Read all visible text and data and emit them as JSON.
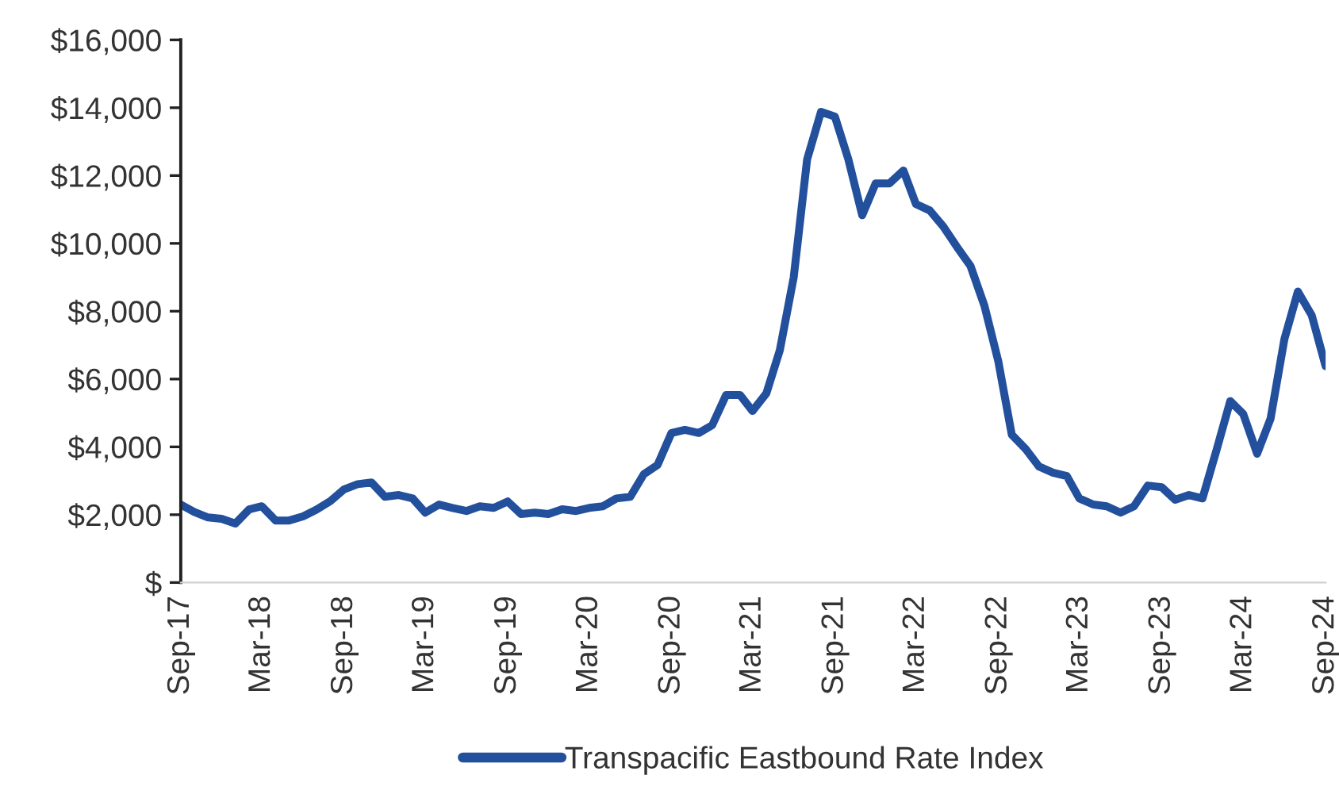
{
  "chart_data": {
    "type": "line",
    "series": [
      {
        "name": "Transpacific Eastbound Rate Index",
        "color": "#23509c",
        "x": [
          "2017-09",
          "2017-10",
          "2017-11",
          "2017-12",
          "2018-01",
          "2018-02",
          "2018-03",
          "2018-04",
          "2018-05",
          "2018-06",
          "2018-07",
          "2018-08",
          "2018-09",
          "2018-10",
          "2018-11",
          "2018-12",
          "2019-01",
          "2019-02",
          "2019-03",
          "2019-04",
          "2019-05",
          "2019-06",
          "2019-07",
          "2019-08",
          "2019-09",
          "2019-10",
          "2019-11",
          "2019-12",
          "2020-01",
          "2020-02",
          "2020-03",
          "2020-04",
          "2020-05",
          "2020-06",
          "2020-07",
          "2020-08",
          "2020-09",
          "2020-10",
          "2020-11",
          "2020-12",
          "2021-01",
          "2021-02",
          "2021-03",
          "2021-04",
          "2021-05",
          "2021-06",
          "2021-07",
          "2021-08",
          "2021-09",
          "2021-10",
          "2021-11",
          "2021-12",
          "2022-01",
          "2022-02",
          "2022-03",
          "2022-04",
          "2022-05",
          "2022-06",
          "2022-07",
          "2022-08",
          "2022-09",
          "2022-10",
          "2022-11",
          "2022-12",
          "2023-01",
          "2023-02",
          "2023-03",
          "2023-04",
          "2023-05",
          "2023-06",
          "2023-07",
          "2023-08",
          "2023-09",
          "2023-10",
          "2023-11",
          "2023-12",
          "2024-01",
          "2024-02",
          "2024-03",
          "2024-04",
          "2024-05",
          "2024-06",
          "2024-07",
          "2024-08",
          "2024-09"
        ],
        "values": [
          2300,
          2080,
          1920,
          1880,
          1740,
          2160,
          2250,
          1830,
          1830,
          1950,
          2150,
          2400,
          2750,
          2900,
          2950,
          2530,
          2580,
          2480,
          2060,
          2300,
          2200,
          2110,
          2250,
          2200,
          2390,
          2020,
          2060,
          2020,
          2160,
          2110,
          2200,
          2250,
          2480,
          2530,
          3190,
          3470,
          4410,
          4500,
          4410,
          4640,
          5530,
          5530,
          5060,
          5580,
          6850,
          9000,
          12480,
          13880,
          13740,
          12480,
          10830,
          11770,
          11770,
          12150,
          11160,
          10970,
          10500,
          9890,
          9330,
          8160,
          6520,
          4360,
          3940,
          3420,
          3240,
          3140,
          2480,
          2300,
          2250,
          2060,
          2250,
          2860,
          2810,
          2440,
          2580,
          2480,
          3890,
          5350,
          4970,
          3800,
          4830,
          7180,
          8580,
          7880,
          6380
        ]
      }
    ],
    "xlim": [
      "2017-09",
      "2024-09"
    ],
    "xticks": [
      {
        "value": "2017-09",
        "label": "Sep-17"
      },
      {
        "value": "2018-03",
        "label": "Mar-18"
      },
      {
        "value": "2018-09",
        "label": "Sep-18"
      },
      {
        "value": "2019-03",
        "label": "Mar-19"
      },
      {
        "value": "2019-09",
        "label": "Sep-19"
      },
      {
        "value": "2020-03",
        "label": "Mar-20"
      },
      {
        "value": "2020-09",
        "label": "Sep-20"
      },
      {
        "value": "2021-03",
        "label": "Mar-21"
      },
      {
        "value": "2021-09",
        "label": "Sep-21"
      },
      {
        "value": "2022-03",
        "label": "Mar-22"
      },
      {
        "value": "2022-09",
        "label": "Sep-22"
      },
      {
        "value": "2023-03",
        "label": "Mar-23"
      },
      {
        "value": "2023-09",
        "label": "Sep-23"
      },
      {
        "value": "2024-03",
        "label": "Mar-24"
      },
      {
        "value": "2024-09",
        "label": "Sep-24"
      }
    ],
    "ylim": [
      0,
      16000
    ],
    "yticks": [
      {
        "value": 0,
        "label": "$"
      },
      {
        "value": 2000,
        "label": "$2,000"
      },
      {
        "value": 4000,
        "label": "$4,000"
      },
      {
        "value": 6000,
        "label": "$6,000"
      },
      {
        "value": 8000,
        "label": "$8,000"
      },
      {
        "value": 10000,
        "label": "$10,000"
      },
      {
        "value": 12000,
        "label": "$12,000"
      },
      {
        "value": 14000,
        "label": "$14,000"
      },
      {
        "value": 16000,
        "label": "$16,000"
      }
    ],
    "grid": false,
    "legend": "bottom",
    "marker": "none",
    "line_style": "solid"
  }
}
